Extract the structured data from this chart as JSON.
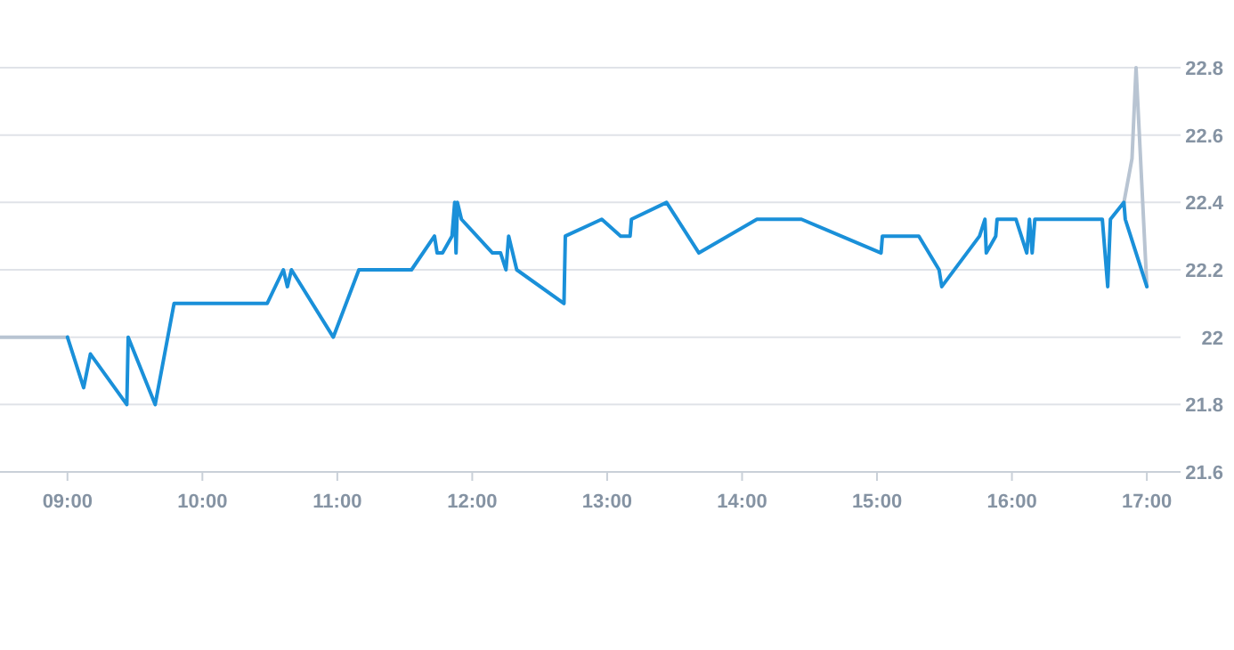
{
  "chart_data": {
    "type": "line",
    "xlim": [
      8.5,
      17.25
    ],
    "ylim": [
      21.6,
      22.8
    ],
    "xticks": [
      {
        "value": 9,
        "label": "09:00"
      },
      {
        "value": 10,
        "label": "10:00"
      },
      {
        "value": 11,
        "label": "11:00"
      },
      {
        "value": 12,
        "label": "12:00"
      },
      {
        "value": 13,
        "label": "13:00"
      },
      {
        "value": 14,
        "label": "14:00"
      },
      {
        "value": 15,
        "label": "15:00"
      },
      {
        "value": 16,
        "label": "16:00"
      },
      {
        "value": 17,
        "label": "17:00"
      }
    ],
    "yticks": [
      21.6,
      21.8,
      22,
      22.2,
      22.4,
      22.6,
      22.8
    ],
    "grid": "y",
    "marker": "none",
    "line_style": "solid",
    "series": [
      {
        "color": "#b8c4d2",
        "x": [
          8.5,
          9.0,
          12.0,
          16.83,
          16.89,
          16.92,
          17.0
        ],
        "values": [
          22.0,
          22.0,
          null,
          22.4,
          22.53,
          22.8,
          22.15
        ]
      },
      {
        "color": "#1a90d9",
        "x": [
          9.0,
          9.12,
          9.17,
          9.44,
          9.45,
          9.65,
          9.79,
          10.48,
          10.6,
          10.63,
          10.66,
          10.97,
          11.16,
          11.55,
          11.72,
          11.74,
          11.78,
          11.85,
          11.87,
          11.88,
          11.89,
          11.92,
          12.15,
          12.21,
          12.25,
          12.27,
          12.33,
          12.68,
          12.69,
          12.96,
          13.1,
          13.17,
          13.18,
          13.44,
          13.68,
          14.11,
          14.44,
          15.03,
          15.04,
          15.31,
          15.46,
          15.48,
          15.76,
          15.8,
          15.81,
          15.88,
          15.89,
          16.03,
          16.11,
          16.13,
          16.15,
          16.17,
          16.67,
          16.71,
          16.73,
          16.83,
          16.84,
          17.0
        ],
        "values": [
          22.0,
          21.85,
          21.95,
          21.8,
          22.0,
          21.8,
          22.1,
          22.1,
          22.2,
          22.15,
          22.2,
          22.0,
          22.2,
          22.2,
          22.3,
          22.25,
          22.25,
          22.3,
          22.4,
          22.25,
          22.4,
          22.35,
          22.25,
          22.25,
          22.2,
          22.3,
          22.2,
          22.1,
          22.3,
          22.35,
          22.3,
          22.3,
          22.35,
          22.4,
          22.25,
          22.35,
          22.35,
          22.25,
          22.3,
          22.3,
          22.2,
          22.15,
          22.3,
          22.35,
          22.25,
          22.3,
          22.35,
          22.35,
          22.25,
          22.35,
          22.25,
          22.35,
          22.35,
          22.15,
          22.35,
          22.4,
          22.35,
          22.15
        ]
      }
    ]
  }
}
